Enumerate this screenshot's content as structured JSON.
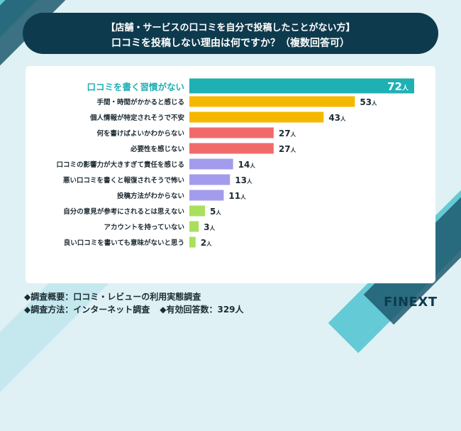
{
  "header": {
    "line1": "【店舗・サービスの口コミを自分で投稿したことがない方】",
    "line2": "口コミを投稿しない理由は何ですか？（複数回答可）"
  },
  "footer": {
    "line1": "◆調査概要：口コミ・レビューの利用実態調査",
    "line2a": "◆調査方法：インターネット調査",
    "line2b": "◆有効回答数：329人"
  },
  "logo": "FINEXT",
  "chart_data": {
    "type": "bar",
    "orientation": "horizontal",
    "unit": "人",
    "categories": [
      "口コミを書く習慣がない",
      "手間・時間がかかると感じる",
      "個人情報が特定されそうで不安",
      "何を書けばよいかわからない",
      "必要性を感じない",
      "口コミの影響力が大きすぎて責任を感じる",
      "悪い口コミを書くと報復されそうで怖い",
      "投稿方法がわからない",
      "自分の意見が参考にされるとは思えない",
      "アカウントを持っていない",
      "良い口コミを書いても意味がないと思う"
    ],
    "values": [
      72,
      53,
      43,
      27,
      27,
      14,
      13,
      11,
      5,
      3,
      2
    ],
    "colors": [
      "#1fb0b4",
      "#f5b800",
      "#f5b800",
      "#f26b6b",
      "#f26b6b",
      "#a39cec",
      "#a39cec",
      "#a39cec",
      "#a8e05c",
      "#a8e05c",
      "#a8e05c"
    ],
    "highlight_color": "#1fb0b4",
    "label_color": "#1d2b33"
  }
}
